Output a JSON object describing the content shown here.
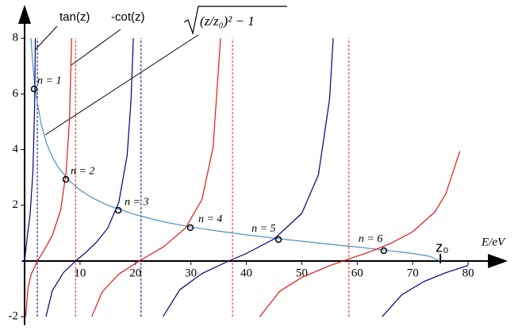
{
  "chart_data": {
    "type": "line",
    "x_label": "E/eV",
    "xlim": [
      -0.5,
      87
    ],
    "ylim": [
      -2.3,
      9.1
    ],
    "xticks": [
      10,
      20,
      30,
      40,
      50,
      60,
      70,
      80
    ],
    "yticks": [
      -2,
      2,
      4,
      6,
      8
    ],
    "series": [
      {
        "name": "(z/z₀)² − 1",
        "color": "#4f8fc0",
        "x": [
          1.15,
          1.5,
          2,
          3,
          4,
          5,
          6,
          8,
          10,
          12,
          15,
          20,
          25,
          30,
          35,
          40,
          45,
          50,
          55,
          60,
          65,
          70,
          73,
          75
        ],
        "values": [
          8.01,
          7,
          6.04,
          4.9,
          4.21,
          3.74,
          3.39,
          2.89,
          2.55,
          2.29,
          2,
          1.66,
          1.41,
          1.22,
          1.07,
          0.94,
          0.82,
          0.71,
          0.6,
          0.5,
          0.39,
          0.27,
          0.17,
          0
        ]
      },
      {
        "name": "tan(z)",
        "color": "#000080",
        "x": [
          0,
          0.5,
          1,
          1.5,
          1.8,
          1.95,
          null,
          3.86,
          5,
          7,
          9.2,
          11,
          13,
          15,
          17,
          18.5,
          19.2,
          19.62,
          null,
          25,
          28,
          32,
          36.8,
          40,
          45,
          50,
          53,
          55,
          55.67,
          null,
          64.5,
          68,
          72,
          76,
          80
        ],
        "values": [
          0,
          0.9,
          1.69,
          3.21,
          5.5,
          8,
          null,
          -2,
          -1.07,
          -0.42,
          0,
          0.3,
          0.68,
          1.18,
          2.11,
          3.8,
          5.8,
          8,
          null,
          -1.99,
          -1.03,
          -0.45,
          0,
          0.27,
          0.79,
          1.71,
          3.1,
          5.8,
          8,
          null,
          -2,
          -1.22,
          -0.74,
          -0.42,
          -0.16
        ]
      },
      {
        "name": "-cot(z)",
        "color": "#e01818",
        "x": [
          0.2,
          0.6,
          1.2,
          2.3,
          3.5,
          5,
          6.5,
          7.5,
          8.1,
          8.49,
          null,
          12.11,
          14,
          17,
          21,
          25,
          29,
          32,
          34,
          35.34,
          null,
          42.43,
          46,
          50,
          55,
          58.2,
          62,
          66,
          70,
          74,
          76,
          78.5
        ],
        "values": [
          -2,
          -0.97,
          -0.47,
          0,
          0.38,
          0.92,
          1.82,
          3.19,
          5.1,
          8,
          null,
          -2,
          -1.11,
          -0.47,
          0.04,
          0.5,
          1.18,
          2.21,
          4.08,
          8,
          null,
          -2,
          -1.09,
          -0.59,
          -0.17,
          0.05,
          0.31,
          0.63,
          1.05,
          1.76,
          2.42,
          3.94
        ]
      }
    ],
    "asymptotes": {
      "x": [
        2.3,
        9.2,
        21,
        37.5,
        58.5
      ],
      "colors": [
        "#000080",
        "#e01818",
        "#000080",
        "#e01818",
        "#e01818"
      ]
    },
    "solutions": {
      "x": [
        1.72,
        7.44,
        16.9,
        29.9,
        45.8,
        64.8
      ],
      "values": [
        6.18,
        2.93,
        1.82,
        1.2,
        0.77,
        0.37
      ],
      "labels": [
        "n = 1",
        "n = 2",
        "n = 3",
        "n = 4",
        "n = 5",
        "n = 6"
      ]
    },
    "z0": {
      "label": "z₀",
      "x": 75
    }
  }
}
